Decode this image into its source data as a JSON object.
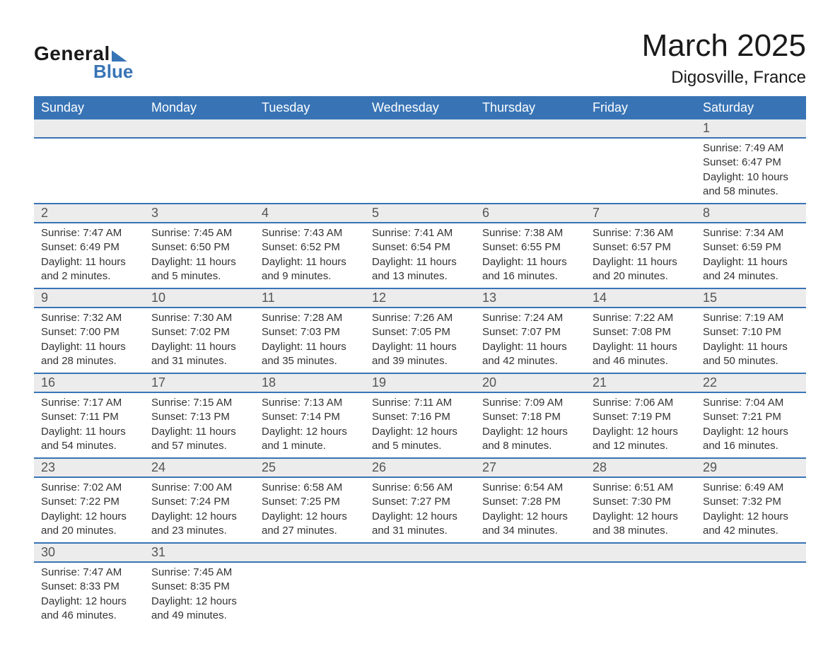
{
  "logo": {
    "text_general": "General",
    "text_blue": "Blue",
    "accent_color": "#3874b5"
  },
  "header": {
    "month_title": "March 2025",
    "location": "Digosville, France"
  },
  "calendar": {
    "header_bg": "#3874b5",
    "header_fg": "#ffffff",
    "daynum_bg": "#ececec",
    "row_border": "#3874b5",
    "text_color": "#333333",
    "font_size_header": 18,
    "font_size_daynum": 18,
    "font_size_body": 15,
    "columns": [
      "Sunday",
      "Monday",
      "Tuesday",
      "Wednesday",
      "Thursday",
      "Friday",
      "Saturday"
    ],
    "weeks": [
      [
        null,
        null,
        null,
        null,
        null,
        null,
        {
          "day": "1",
          "sunrise": "7:49 AM",
          "sunset": "6:47 PM",
          "daylight": "10 hours and 58 minutes."
        }
      ],
      [
        {
          "day": "2",
          "sunrise": "7:47 AM",
          "sunset": "6:49 PM",
          "daylight": "11 hours and 2 minutes."
        },
        {
          "day": "3",
          "sunrise": "7:45 AM",
          "sunset": "6:50 PM",
          "daylight": "11 hours and 5 minutes."
        },
        {
          "day": "4",
          "sunrise": "7:43 AM",
          "sunset": "6:52 PM",
          "daylight": "11 hours and 9 minutes."
        },
        {
          "day": "5",
          "sunrise": "7:41 AM",
          "sunset": "6:54 PM",
          "daylight": "11 hours and 13 minutes."
        },
        {
          "day": "6",
          "sunrise": "7:38 AM",
          "sunset": "6:55 PM",
          "daylight": "11 hours and 16 minutes."
        },
        {
          "day": "7",
          "sunrise": "7:36 AM",
          "sunset": "6:57 PM",
          "daylight": "11 hours and 20 minutes."
        },
        {
          "day": "8",
          "sunrise": "7:34 AM",
          "sunset": "6:59 PM",
          "daylight": "11 hours and 24 minutes."
        }
      ],
      [
        {
          "day": "9",
          "sunrise": "7:32 AM",
          "sunset": "7:00 PM",
          "daylight": "11 hours and 28 minutes."
        },
        {
          "day": "10",
          "sunrise": "7:30 AM",
          "sunset": "7:02 PM",
          "daylight": "11 hours and 31 minutes."
        },
        {
          "day": "11",
          "sunrise": "7:28 AM",
          "sunset": "7:03 PM",
          "daylight": "11 hours and 35 minutes."
        },
        {
          "day": "12",
          "sunrise": "7:26 AM",
          "sunset": "7:05 PM",
          "daylight": "11 hours and 39 minutes."
        },
        {
          "day": "13",
          "sunrise": "7:24 AM",
          "sunset": "7:07 PM",
          "daylight": "11 hours and 42 minutes."
        },
        {
          "day": "14",
          "sunrise": "7:22 AM",
          "sunset": "7:08 PM",
          "daylight": "11 hours and 46 minutes."
        },
        {
          "day": "15",
          "sunrise": "7:19 AM",
          "sunset": "7:10 PM",
          "daylight": "11 hours and 50 minutes."
        }
      ],
      [
        {
          "day": "16",
          "sunrise": "7:17 AM",
          "sunset": "7:11 PM",
          "daylight": "11 hours and 54 minutes."
        },
        {
          "day": "17",
          "sunrise": "7:15 AM",
          "sunset": "7:13 PM",
          "daylight": "11 hours and 57 minutes."
        },
        {
          "day": "18",
          "sunrise": "7:13 AM",
          "sunset": "7:14 PM",
          "daylight": "12 hours and 1 minute."
        },
        {
          "day": "19",
          "sunrise": "7:11 AM",
          "sunset": "7:16 PM",
          "daylight": "12 hours and 5 minutes."
        },
        {
          "day": "20",
          "sunrise": "7:09 AM",
          "sunset": "7:18 PM",
          "daylight": "12 hours and 8 minutes."
        },
        {
          "day": "21",
          "sunrise": "7:06 AM",
          "sunset": "7:19 PM",
          "daylight": "12 hours and 12 minutes."
        },
        {
          "day": "22",
          "sunrise": "7:04 AM",
          "sunset": "7:21 PM",
          "daylight": "12 hours and 16 minutes."
        }
      ],
      [
        {
          "day": "23",
          "sunrise": "7:02 AM",
          "sunset": "7:22 PM",
          "daylight": "12 hours and 20 minutes."
        },
        {
          "day": "24",
          "sunrise": "7:00 AM",
          "sunset": "7:24 PM",
          "daylight": "12 hours and 23 minutes."
        },
        {
          "day": "25",
          "sunrise": "6:58 AM",
          "sunset": "7:25 PM",
          "daylight": "12 hours and 27 minutes."
        },
        {
          "day": "26",
          "sunrise": "6:56 AM",
          "sunset": "7:27 PM",
          "daylight": "12 hours and 31 minutes."
        },
        {
          "day": "27",
          "sunrise": "6:54 AM",
          "sunset": "7:28 PM",
          "daylight": "12 hours and 34 minutes."
        },
        {
          "day": "28",
          "sunrise": "6:51 AM",
          "sunset": "7:30 PM",
          "daylight": "12 hours and 38 minutes."
        },
        {
          "day": "29",
          "sunrise": "6:49 AM",
          "sunset": "7:32 PM",
          "daylight": "12 hours and 42 minutes."
        }
      ],
      [
        {
          "day": "30",
          "sunrise": "7:47 AM",
          "sunset": "8:33 PM",
          "daylight": "12 hours and 46 minutes."
        },
        {
          "day": "31",
          "sunrise": "7:45 AM",
          "sunset": "8:35 PM",
          "daylight": "12 hours and 49 minutes."
        },
        null,
        null,
        null,
        null,
        null
      ]
    ]
  }
}
